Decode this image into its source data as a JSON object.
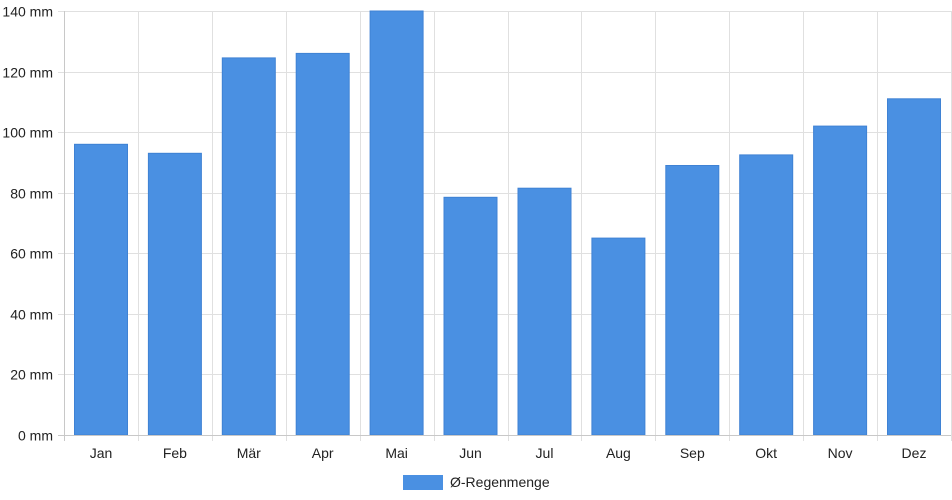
{
  "chart_data": {
    "type": "bar",
    "categories": [
      "Jan",
      "Feb",
      "Mär",
      "Apr",
      "Mai",
      "Jun",
      "Jul",
      "Aug",
      "Sep",
      "Okt",
      "Nov",
      "Dez"
    ],
    "series": [
      {
        "name": "Ø-Regenmenge",
        "color": "#4a90e2",
        "values": [
          96,
          93,
          124.5,
          126,
          140,
          78.5,
          81.5,
          65,
          89,
          92.5,
          102,
          111
        ]
      }
    ],
    "y_ticks": [
      "0 mm",
      "20 mm",
      "40 mm",
      "60 mm",
      "80 mm",
      "100 mm",
      "120 mm",
      "140 mm"
    ],
    "ylim": [
      0,
      140
    ],
    "y_unit": "mm",
    "grid": true,
    "legend_position": "bottom-center"
  }
}
